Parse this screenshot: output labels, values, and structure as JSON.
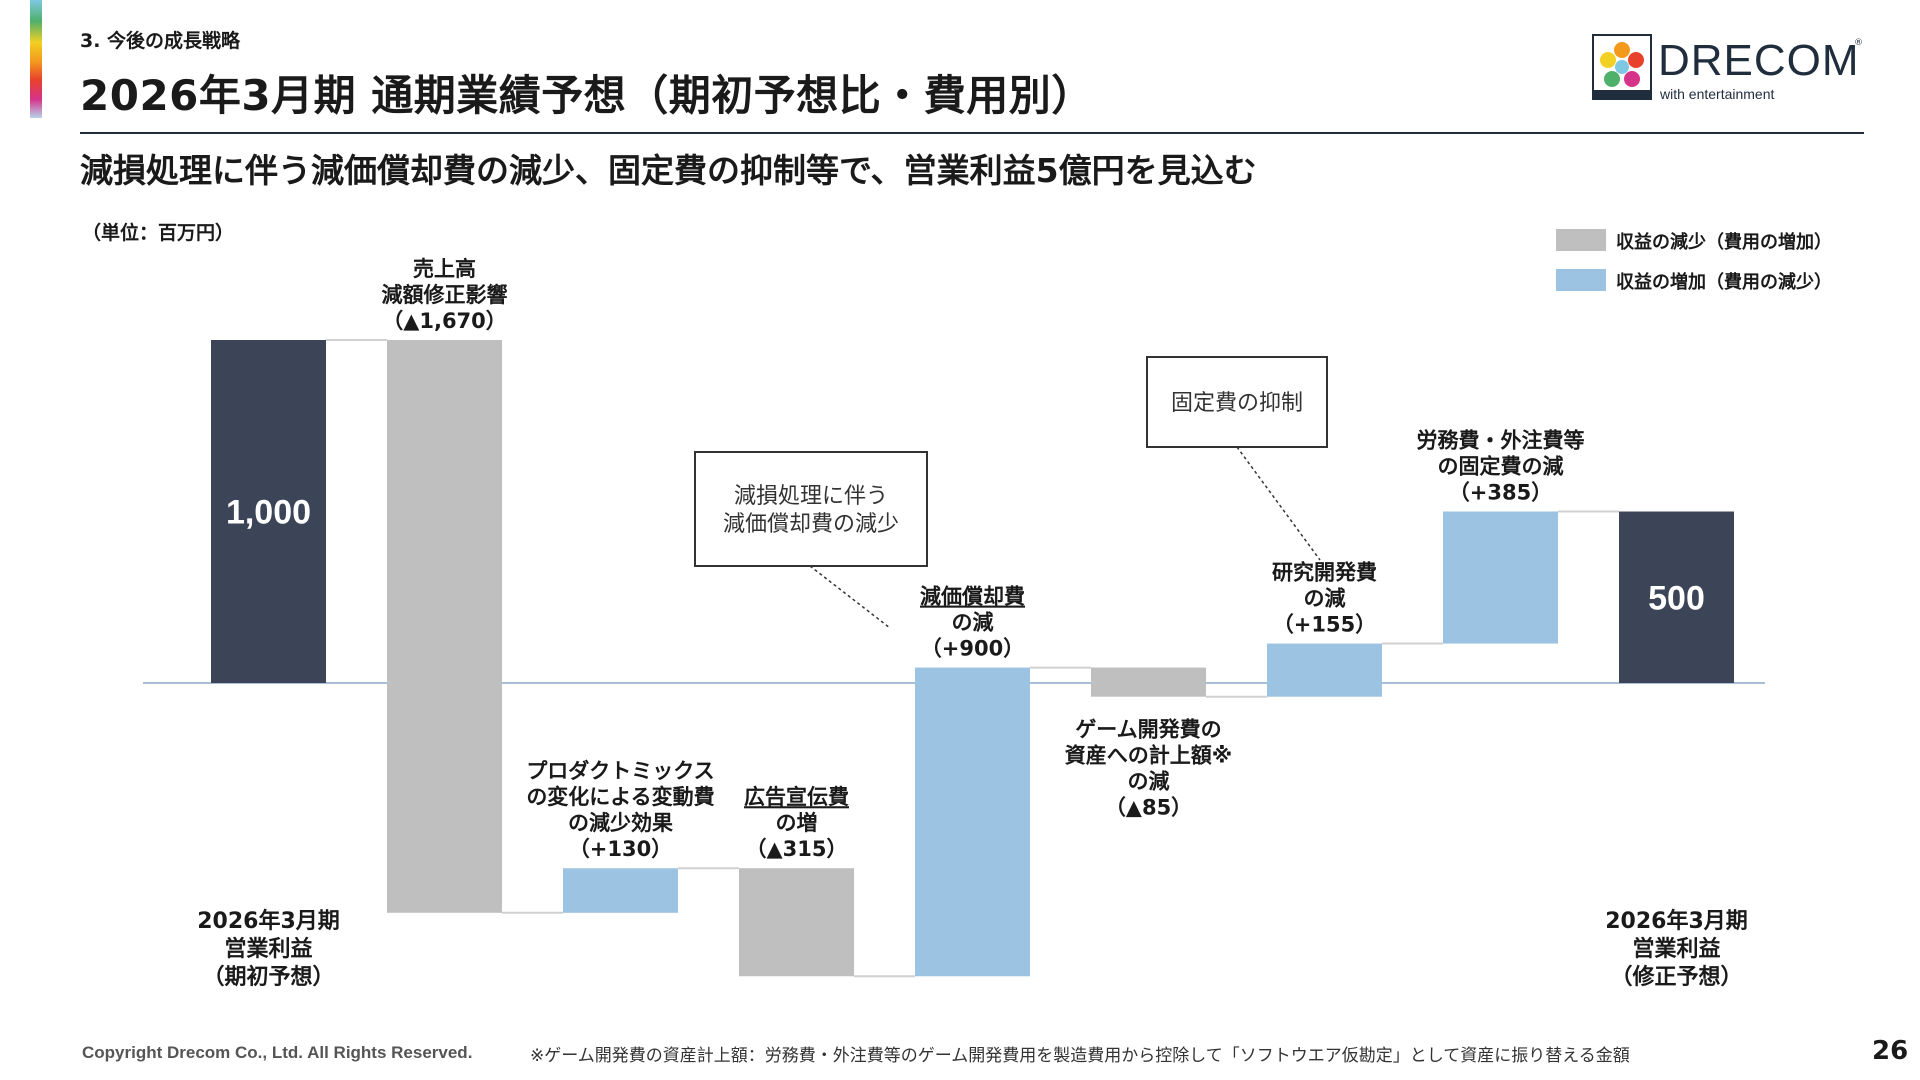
{
  "header": {
    "section": "3. 今後の成長戦略",
    "title": "2026年3月期 通期業績予想（期初予想比・費用別）",
    "subtitle": "減損処理に伴う減価償却費の減少、固定費の抑制等で、営業利益5億円を見込む",
    "unit": "（単位：百万円）"
  },
  "logo": {
    "word": "DRECOM",
    "reg": "®",
    "tagline": "with entertainment"
  },
  "legend": {
    "decrease": {
      "label": "収益の減少（費用の増加）",
      "color": "#bfbfbf"
    },
    "increase": {
      "label": "収益の増加（費用の減少）",
      "color": "#9dc3e2"
    }
  },
  "colors": {
    "total": "#3b4557",
    "decrease": "#bfbfbf",
    "increase": "#9dc3e2",
    "axis": "#a9bfd3",
    "connector": "#d0d0d0"
  },
  "chart_data": {
    "type": "waterfall",
    "unit": "百万円",
    "baseline": 0,
    "steps": [
      {
        "key": "start",
        "kind": "total",
        "value": 1000,
        "value_label": "1,000",
        "label_lines": []
      },
      {
        "key": "sales",
        "kind": "delta",
        "value": -1670,
        "label_lines": [
          "売上高",
          "減額修正影響",
          "（▲1,670）"
        ],
        "label_pos": "above"
      },
      {
        "key": "mix",
        "kind": "delta",
        "value": 130,
        "label_lines": [
          "プロダクトミックス",
          "の変化による変動費",
          "の減少効果",
          "（+130）"
        ],
        "label_pos": "above"
      },
      {
        "key": "ads",
        "kind": "delta",
        "value": -315,
        "label_lines": [
          "広告宣伝費",
          "の増",
          "（▲315）"
        ],
        "label_pos": "above",
        "underline_first": true
      },
      {
        "key": "depr",
        "kind": "delta",
        "value": 900,
        "label_lines": [
          "減価償却費",
          "の減",
          "（+900）"
        ],
        "label_pos": "above",
        "underline_first": true
      },
      {
        "key": "capex",
        "kind": "delta",
        "value": -85,
        "label_lines": [
          "ゲーム開発費の",
          "資産への計上額※",
          "の減",
          "（▲85）"
        ],
        "label_pos": "below"
      },
      {
        "key": "rnd",
        "kind": "delta",
        "value": 155,
        "label_lines": [
          "研究開発費",
          "の減",
          "（+155）"
        ],
        "label_pos": "above"
      },
      {
        "key": "labor",
        "kind": "delta",
        "value": 385,
        "label_lines": [
          "労務費・外注費等",
          "の固定費の減",
          "（+385）"
        ],
        "label_pos": "above"
      },
      {
        "key": "end",
        "kind": "total",
        "value": 500,
        "value_label": "500",
        "label_lines": []
      }
    ],
    "axis_labels": {
      "start": [
        "2026年3月期",
        "営業利益",
        "（期初予想）"
      ],
      "end": [
        "2026年3月期",
        "営業利益",
        "（修正予想）"
      ]
    },
    "callouts": [
      {
        "text_lines": [
          "減損処理に伴う",
          "減価償却費の減少"
        ],
        "target": "depr"
      },
      {
        "text_lines": [
          "固定費の抑制"
        ],
        "target": "rnd"
      }
    ]
  },
  "footer": {
    "copyright": "Copyright Drecom Co., Ltd. All Rights Reserved.",
    "footnote": "※ゲーム開発費の資産計上額：労務費・外注費等のゲーム開発費用を製造費用から控除して「ソフトウエア仮勘定」として資産に振り替える金額",
    "page": "26"
  }
}
